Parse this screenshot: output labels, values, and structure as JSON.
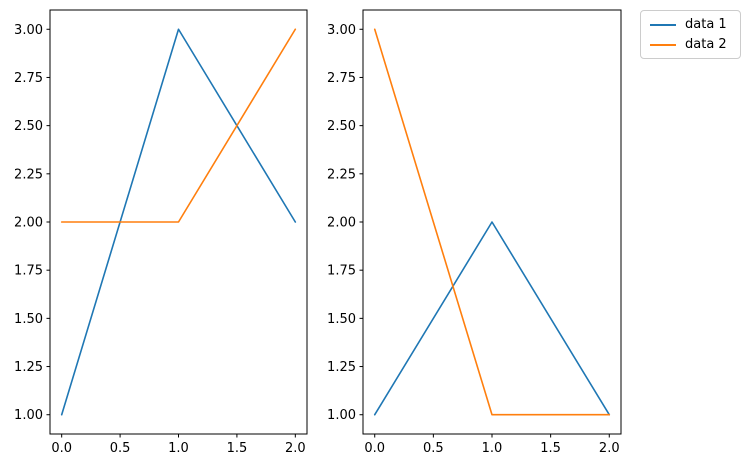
{
  "figure": {
    "background": "#ffffff",
    "spine_color": "#000000",
    "tick_color": "#000000"
  },
  "chart_data": [
    {
      "type": "line",
      "subplot": "left",
      "title": "",
      "xlabel": "",
      "ylabel": "",
      "grid": false,
      "x": [
        0,
        1,
        2
      ],
      "series": [
        {
          "name": "data 1",
          "color": "#1f77b4",
          "values": [
            1,
            3,
            2
          ]
        },
        {
          "name": "data 2",
          "color": "#ff7f0e",
          "values": [
            2,
            2,
            3
          ]
        }
      ],
      "xlim": [
        -0.1,
        2.1
      ],
      "ylim": [
        0.9,
        3.1
      ],
      "xticks": [
        0,
        0.5,
        1,
        1.5,
        2
      ],
      "xtick_labels": [
        "0.0",
        "0.5",
        "1.0",
        "1.5",
        "2.0"
      ],
      "yticks": [
        1,
        1.25,
        1.5,
        1.75,
        2,
        2.25,
        2.5,
        2.75,
        3
      ],
      "ytick_labels": [
        "1.00",
        "1.25",
        "1.50",
        "1.75",
        "2.00",
        "2.25",
        "2.50",
        "2.75",
        "3.00"
      ]
    },
    {
      "type": "line",
      "subplot": "right",
      "title": "",
      "xlabel": "",
      "ylabel": "",
      "grid": false,
      "x": [
        0,
        1,
        2
      ],
      "series": [
        {
          "name": "data 1",
          "color": "#1f77b4",
          "values": [
            1,
            2,
            1
          ]
        },
        {
          "name": "data 2",
          "color": "#ff7f0e",
          "values": [
            3,
            1,
            1
          ]
        }
      ],
      "xlim": [
        -0.1,
        2.1
      ],
      "ylim": [
        0.9,
        3.1
      ],
      "xticks": [
        0,
        0.5,
        1,
        1.5,
        2
      ],
      "xtick_labels": [
        "0.0",
        "0.5",
        "1.0",
        "1.5",
        "2.0"
      ],
      "yticks": [
        1,
        1.25,
        1.5,
        1.75,
        2,
        2.25,
        2.5,
        2.75,
        3
      ],
      "ytick_labels": [
        "1.00",
        "1.25",
        "1.50",
        "1.75",
        "2.00",
        "2.25",
        "2.50",
        "2.75",
        "3.00"
      ]
    }
  ],
  "legend": {
    "position": "outside-upper-right",
    "entries": [
      {
        "label": "data 1",
        "color": "#1f77b4"
      },
      {
        "label": "data 2",
        "color": "#ff7f0e"
      }
    ]
  }
}
